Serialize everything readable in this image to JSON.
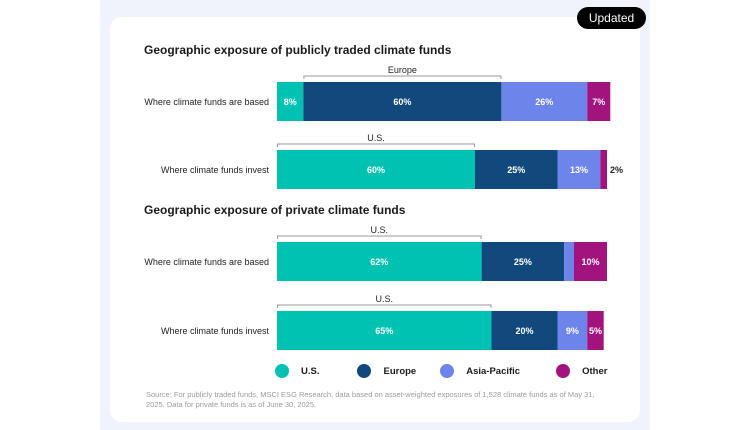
{
  "badge": "Updated",
  "colors": {
    "U.S.": "#00c2b2",
    "Europe": "#12497c",
    "Asia-Pacific": "#6d84ea",
    "Other": "#a3137e"
  },
  "legend": [
    {
      "label": "U.S.",
      "color": "#00c2b2"
    },
    {
      "label": "Europe",
      "color": "#12497c"
    },
    {
      "label": "Asia-Pacific",
      "color": "#6d84ea"
    },
    {
      "label": "Other",
      "color": "#a3137e"
    }
  ],
  "source": "Source: For publicly traded funds, MSCI ESG Research, data based on asset-weighted exposures of 1,528 climate funds as of May 31, 2025. Data for private funds is as of June 30, 2025.",
  "chart_data": [
    {
      "type": "bar",
      "orientation": "horizontal-stacked",
      "title": "Geographic exposure of publicly traded climate funds",
      "categories": [
        "Where climate funds are based",
        "Where climate funds invest"
      ],
      "series": [
        {
          "name": "U.S.",
          "values": [
            8,
            60
          ]
        },
        {
          "name": "Europe",
          "values": [
            60,
            25
          ]
        },
        {
          "name": "Asia-Pacific",
          "values": [
            26,
            13
          ]
        },
        {
          "name": "Other",
          "values": [
            7,
            2
          ]
        }
      ],
      "labels": [
        [
          "8%",
          "60%",
          "26%",
          "7%"
        ],
        [
          "60%",
          "25%",
          "13%",
          "2%"
        ]
      ],
      "brackets": [
        {
          "row": 0,
          "series": "Europe",
          "label": "Europe"
        },
        {
          "row": 1,
          "series": "U.S.",
          "label": "U.S."
        }
      ],
      "xlim": [
        0,
        100
      ]
    },
    {
      "type": "bar",
      "orientation": "horizontal-stacked",
      "title": "Geographic exposure of private climate funds",
      "categories": [
        "Where climate funds are based",
        "Where climate funds invest"
      ],
      "series": [
        {
          "name": "U.S.",
          "values": [
            62,
            65
          ]
        },
        {
          "name": "Europe",
          "values": [
            25,
            20
          ]
        },
        {
          "name": "Asia-Pacific",
          "values": [
            3,
            9
          ]
        },
        {
          "name": "Other",
          "values": [
            10,
            5
          ]
        }
      ],
      "labels": [
        [
          "62%",
          "25%",
          "3%",
          "10%"
        ],
        [
          "65%",
          "20%",
          "9%",
          "5%"
        ]
      ],
      "brackets": [
        {
          "row": 0,
          "series": "U.S.",
          "label": "U.S."
        },
        {
          "row": 1,
          "series": "U.S.",
          "label": "U.S."
        }
      ],
      "xlim": [
        0,
        100
      ]
    }
  ]
}
